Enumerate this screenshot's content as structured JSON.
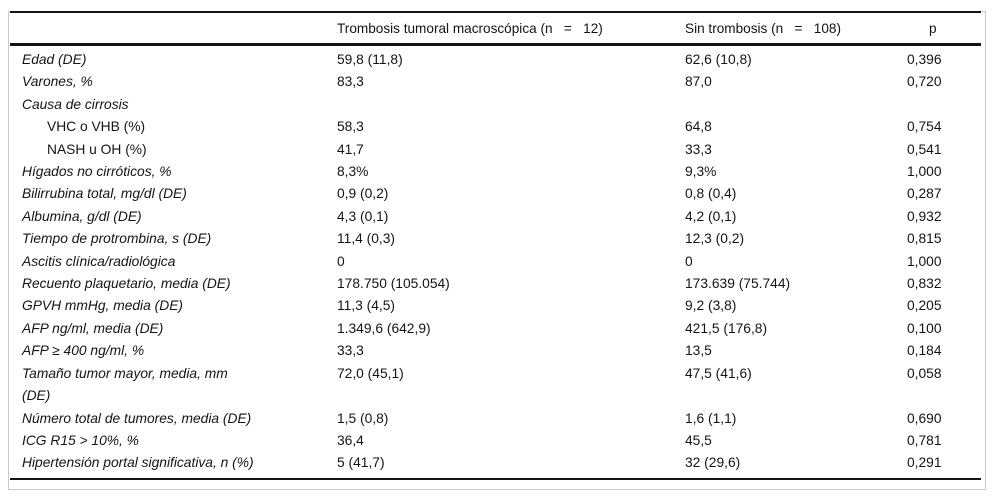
{
  "colors": {
    "rule": "#141414",
    "frame_border": "#c9c9c9",
    "text": "#141414",
    "background": "#ffffff"
  },
  "table": {
    "columns": {
      "label": "",
      "group1": "Trombosis tumoral macroscópica (n   =   12)",
      "group2": "Sin trombosis (n   =   108)",
      "p": "p"
    },
    "rows": [
      {
        "label": "Edad (DE)",
        "italic": true,
        "indent": false,
        "values": [
          "59,8 (11,8)",
          "62,6 (10,8)",
          "0,396"
        ]
      },
      {
        "label": "Varones, %",
        "italic": true,
        "indent": false,
        "values": [
          "83,3",
          "87,0",
          "0,720"
        ]
      },
      {
        "label": "Causa de cirrosis",
        "italic": true,
        "indent": false,
        "values": [
          "",
          "",
          ""
        ]
      },
      {
        "label": "VHC o VHB (%)",
        "italic": false,
        "indent": true,
        "values": [
          "58,3",
          "64,8",
          "0,754"
        ]
      },
      {
        "label": "NASH u OH (%)",
        "italic": false,
        "indent": true,
        "values": [
          "41,7",
          "33,3",
          "0,541"
        ]
      },
      {
        "label": "Hígados no cirróticos, %",
        "italic": true,
        "indent": false,
        "values": [
          "8,3%",
          "9,3%",
          "1,000"
        ]
      },
      {
        "label": "Bilirrubina total, mg/dl (DE)",
        "italic": true,
        "indent": false,
        "values": [
          "0,9 (0,2)",
          "0,8 (0,4)",
          "0,287"
        ]
      },
      {
        "label": "Albumina, g/dl (DE)",
        "italic": true,
        "indent": false,
        "values": [
          "4,3 (0,1)",
          "4,2 (0,1)",
          "0,932"
        ]
      },
      {
        "label": "Tiempo de protrombina, s (DE)",
        "italic": true,
        "indent": false,
        "values": [
          "11,4 (0,3)",
          "12,3 (0,2)",
          "0,815"
        ]
      },
      {
        "label": "Ascitis clínica/radiológica",
        "italic": true,
        "indent": false,
        "values": [
          "0",
          "0",
          "1,000"
        ]
      },
      {
        "label": "Recuento plaquetario, media (DE)",
        "italic": true,
        "indent": false,
        "values": [
          "178.750 (105.054)",
          "173.639 (75.744)",
          "0,832"
        ]
      },
      {
        "label": "GPVH mmHg, media (DE)",
        "italic": true,
        "indent": false,
        "values": [
          "11,3 (4,5)",
          "9,2 (3,8)",
          "0,205"
        ]
      },
      {
        "label": "AFP ng/ml, media (DE)",
        "italic": true,
        "indent": false,
        "values": [
          "1.349,6 (642,9)",
          "421,5 (176,8)",
          "0,100"
        ]
      },
      {
        "label": "AFP ≥ 400 ng/ml, %",
        "italic": true,
        "indent": false,
        "values": [
          "33,3",
          "13,5",
          "0,184"
        ]
      },
      {
        "label": "Tamaño tumor mayor, media, mm\n(DE)",
        "italic": true,
        "indent": false,
        "values": [
          "72,0 (45,1)",
          "47,5 (41,6)",
          "0,058"
        ]
      },
      {
        "label": "Número total de tumores, media (DE)",
        "italic": true,
        "indent": false,
        "values": [
          "1,5 (0,8)",
          "1,6 (1,1)",
          "0,690"
        ]
      },
      {
        "label": "ICG R15 > 10%, %",
        "italic": true,
        "indent": false,
        "values": [
          "36,4",
          "45,5",
          "0,781"
        ]
      },
      {
        "label": "Hipertensión portal significativa, n (%)",
        "italic": true,
        "indent": false,
        "values": [
          "5 (41,7)",
          "32 (29,6)",
          "0,291"
        ]
      }
    ]
  }
}
